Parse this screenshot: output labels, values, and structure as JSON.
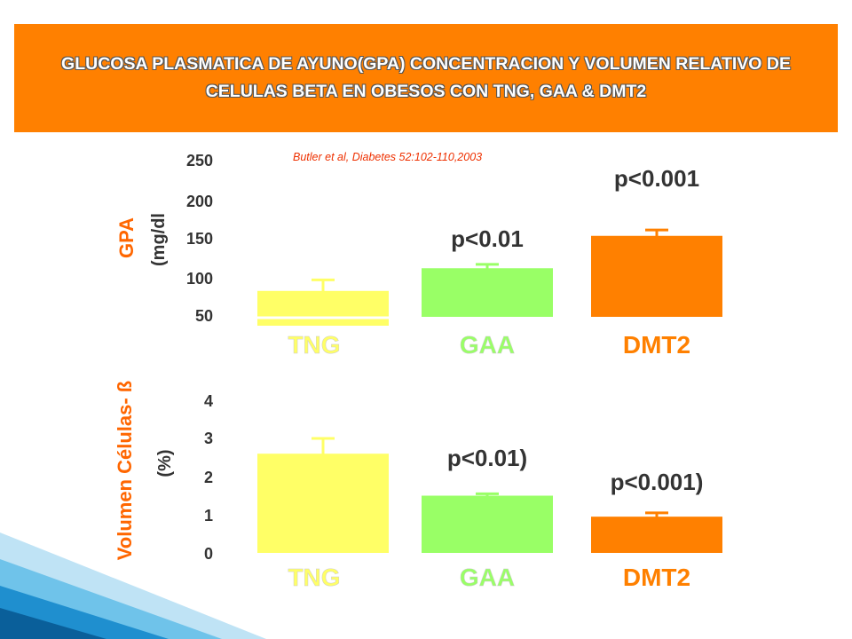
{
  "title": "GLUCOSA PLASMATICA DE AYUNO(GPA) CONCENTRACION Y VOLUMEN RELATIVO DE CELULAS BETA EN OBESOS CON TNG, GAA & DMT2",
  "citation": "Butler et al, Diabetes 52:102-110,2003",
  "colors": {
    "header": "#ff8000",
    "TNG": "#ffff66",
    "GAA": "#99ff66",
    "DMT2": "#ff8000",
    "label": "#ff6600",
    "text": "#333333"
  },
  "chart_data": [
    {
      "type": "bar",
      "ylabel_line1": "GPA",
      "ylabel_line2": "(mg/dl",
      "categories": [
        "TNG",
        "GAA",
        "DMT2"
      ],
      "values": [
        90,
        125,
        175
      ],
      "errors": [
        17,
        6,
        9
      ],
      "yticks": [
        "250",
        "200",
        "150",
        "100",
        "50"
      ],
      "annotations": [
        "",
        "p<0.01",
        "p<0.001"
      ]
    },
    {
      "type": "bar",
      "ylabel_line1": "Volumen Células- ß",
      "ylabel_line2": "(%)",
      "categories": [
        "TNG",
        "GAA",
        "DMT2"
      ],
      "values": [
        2.6,
        1.5,
        0.95
      ],
      "errors": [
        0.4,
        0.05,
        0.1
      ],
      "yticks": [
        "4",
        "3",
        "2",
        "1",
        "0"
      ],
      "annotations": [
        "",
        "p<0.01)",
        "p<0.001)"
      ]
    }
  ]
}
